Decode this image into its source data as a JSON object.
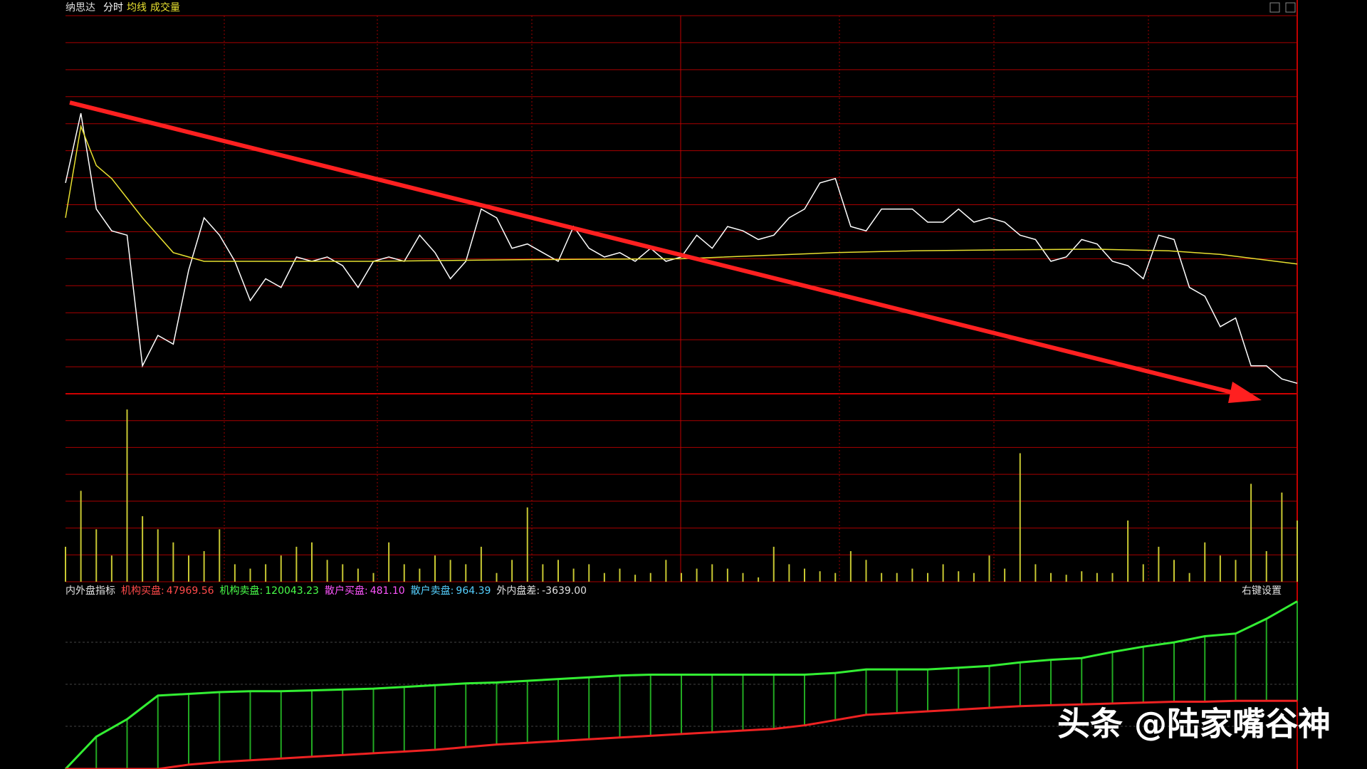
{
  "chart_data": [
    {
      "type": "line",
      "title": "纳思达",
      "xlim": [
        0,
        240
      ],
      "ylim": [
        0,
        434
      ],
      "series": [
        {
          "name": "分时",
          "color": "#ffffff",
          "x": [
            0,
            3,
            6,
            9,
            12,
            15,
            18,
            21,
            24,
            27,
            30,
            33,
            36,
            39,
            42,
            45,
            48,
            51,
            54,
            57,
            60,
            63,
            66,
            69,
            72,
            75,
            78,
            81,
            84,
            87,
            90,
            93,
            96,
            99,
            102,
            105,
            108,
            111,
            114,
            117,
            120,
            123,
            126,
            129,
            132,
            135,
            138,
            141,
            144,
            147,
            150,
            153,
            156,
            159,
            162,
            165,
            168,
            171,
            174,
            177,
            180,
            183,
            186,
            189,
            192,
            195,
            198,
            201,
            204,
            207,
            210,
            213,
            216,
            219,
            222,
            225,
            228,
            231,
            234,
            237,
            240
          ],
          "values": [
            242,
            322,
            212,
            187,
            182,
            32,
            67,
            57,
            142,
            202,
            182,
            152,
            107,
            132,
            122,
            157,
            152,
            157,
            147,
            122,
            152,
            157,
            152,
            182,
            162,
            132,
            152,
            212,
            202,
            167,
            172,
            162,
            152,
            192,
            167,
            157,
            162,
            152,
            167,
            152,
            157,
            182,
            167,
            192,
            187,
            177,
            182,
            202,
            212,
            242,
            247,
            192,
            187,
            212,
            212,
            212,
            197,
            197,
            212,
            197,
            202,
            197,
            182,
            177,
            152,
            157,
            177,
            172,
            152,
            147,
            132,
            182,
            177,
            122,
            112,
            77,
            87,
            32,
            32,
            17,
            12
          ]
        },
        {
          "name": "均线",
          "color": "#e8e030",
          "x": [
            0,
            3,
            6,
            9,
            15,
            21,
            27,
            33,
            39,
            45,
            60,
            90,
            120,
            150,
            165,
            180,
            200,
            215,
            225,
            240
          ],
          "values": [
            202,
            307,
            262,
            247,
            202,
            162,
            152,
            152,
            152,
            152,
            152,
            154,
            155,
            162,
            164,
            165,
            166,
            164,
            160,
            149
          ]
        }
      ]
    },
    {
      "type": "bar",
      "title": "成交量",
      "color": "#c8c832",
      "xlim": [
        0,
        240
      ],
      "ylim": [
        0,
        215
      ],
      "x": [
        0,
        3,
        6,
        9,
        12,
        15,
        18,
        21,
        24,
        27,
        30,
        33,
        36,
        39,
        42,
        45,
        48,
        51,
        54,
        57,
        60,
        63,
        66,
        69,
        72,
        75,
        78,
        81,
        84,
        87,
        90,
        93,
        96,
        99,
        102,
        105,
        108,
        111,
        114,
        117,
        120,
        123,
        126,
        129,
        132,
        135,
        138,
        141,
        144,
        147,
        150,
        153,
        156,
        159,
        162,
        165,
        168,
        171,
        174,
        177,
        180,
        183,
        186,
        189,
        192,
        195,
        198,
        201,
        204,
        207,
        210,
        213,
        216,
        219,
        222,
        225,
        228,
        231,
        234,
        237,
        240
      ],
      "values": [
        40,
        104,
        60,
        30,
        197,
        75,
        60,
        45,
        30,
        35,
        60,
        20,
        15,
        20,
        30,
        40,
        45,
        25,
        20,
        15,
        10,
        45,
        20,
        15,
        30,
        25,
        20,
        40,
        10,
        25,
        85,
        20,
        25,
        15,
        20,
        10,
        15,
        8,
        10,
        25,
        10,
        15,
        20,
        15,
        10,
        5,
        40,
        20,
        15,
        12,
        10,
        35,
        25,
        10,
        10,
        15,
        10,
        20,
        12,
        10,
        30,
        15,
        147,
        20,
        10,
        8,
        12,
        10,
        10,
        70,
        20,
        40,
        25,
        10,
        45,
        30,
        25,
        112,
        35,
        102,
        70
      ]
    },
    {
      "type": "band",
      "title": "内外盘指标",
      "settings": "右键设置",
      "xlim": [
        0,
        240
      ],
      "ylim": [
        0,
        194
      ],
      "indicators": [
        {
          "name": "机构买盘:",
          "value": 47969.56,
          "color": "#ff4a4a"
        },
        {
          "name": "机构卖盘:",
          "value": 120043.23,
          "color": "#4aff4a"
        },
        {
          "name": "散户买盘:",
          "value": 481.1,
          "value_label": "481.10",
          "color": "#ff55ff"
        },
        {
          "name": "散户卖盘:",
          "value": 964.39,
          "color": "#55d0ff"
        },
        {
          "name": "外内盘差:",
          "value": -3639,
          "value_label": "-3639.00",
          "color": "#e0e0e0"
        }
      ],
      "x": [
        0,
        6,
        12,
        18,
        24,
        30,
        36,
        42,
        48,
        54,
        60,
        66,
        72,
        78,
        84,
        90,
        96,
        102,
        108,
        114,
        120,
        126,
        132,
        138,
        144,
        150,
        156,
        162,
        168,
        174,
        180,
        186,
        192,
        198,
        204,
        210,
        216,
        222,
        228,
        234,
        240
      ],
      "series": [
        {
          "color": "#33ee33",
          "values": [
            0,
            37,
            57,
            84,
            86,
            88,
            89,
            89,
            90,
            91,
            92,
            94,
            96,
            98,
            99,
            101,
            103,
            105,
            107,
            108,
            108,
            108,
            108,
            108,
            108,
            110,
            114,
            114,
            114,
            116,
            118,
            122,
            125,
            127,
            134,
            140,
            145,
            152,
            155,
            172,
            192
          ]
        },
        {
          "color": "#ee2222",
          "values": [
            0,
            0,
            0,
            0,
            5,
            8,
            10,
            12,
            14,
            16,
            18,
            20,
            22,
            25,
            28,
            30,
            32,
            34,
            36,
            38,
            40,
            42,
            44,
            46,
            50,
            56,
            62,
            64,
            66,
            68,
            70,
            72,
            73,
            74,
            75,
            76,
            77,
            77,
            78,
            78,
            78
          ]
        }
      ]
    }
  ],
  "watermark": "头条 @陆家嘴谷神"
}
